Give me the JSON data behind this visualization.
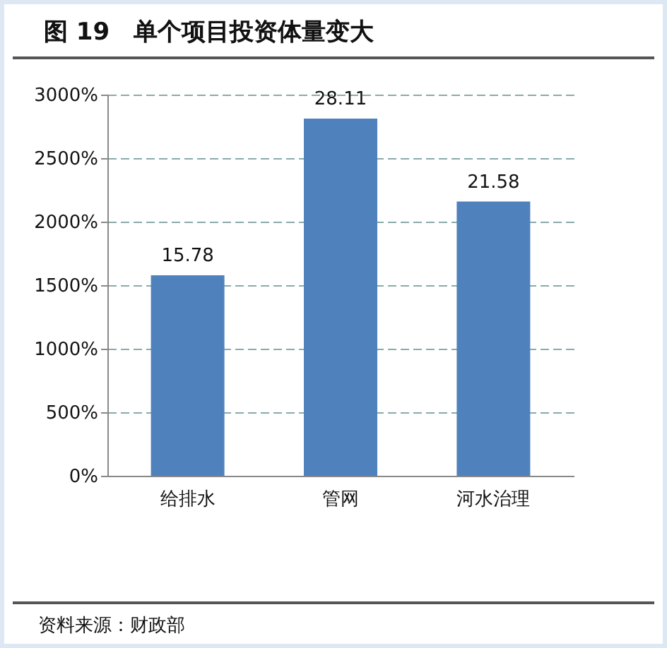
{
  "chart_data": {
    "type": "bar",
    "title": "图 19　单个项目投资体量变大",
    "categories": [
      "给排水",
      "管网",
      "河水治理"
    ],
    "values": [
      15.78,
      28.11,
      21.58
    ],
    "color": "#4f81bd",
    "ylim": [
      0,
      30
    ],
    "yticks": [
      {
        "value": 0,
        "label": "0%"
      },
      {
        "value": 5,
        "label": "500%"
      },
      {
        "value": 10,
        "label": "1000%"
      },
      {
        "value": 15,
        "label": "1500%"
      },
      {
        "value": 20,
        "label": "2000%"
      },
      {
        "value": 25,
        "label": "2500%"
      },
      {
        "value": 30,
        "label": "3000%"
      }
    ],
    "grid": "y",
    "data_labels": true,
    "annotations": [
      "资料来源：财政部"
    ]
  }
}
